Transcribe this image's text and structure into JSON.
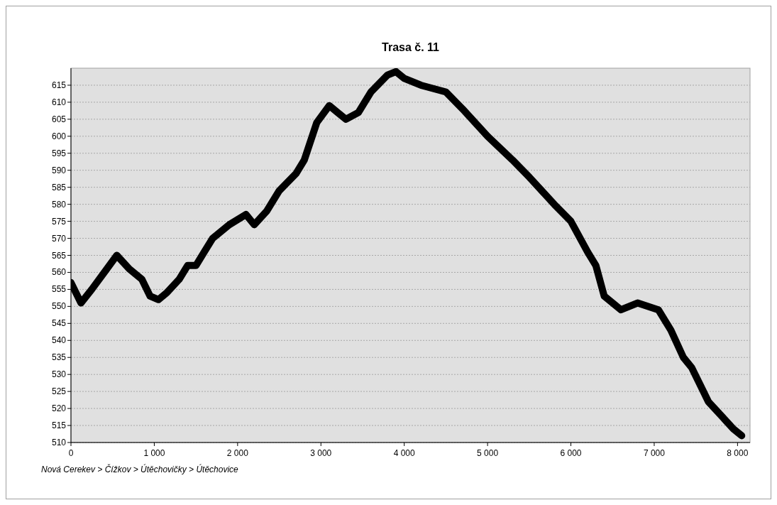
{
  "chart_data": {
    "type": "line",
    "title": "Trasa č. 11",
    "x": [
      0,
      120,
      250,
      400,
      550,
      700,
      850,
      950,
      1050,
      1150,
      1300,
      1400,
      1500,
      1600,
      1700,
      1900,
      2100,
      2200,
      2350,
      2500,
      2700,
      2800,
      2950,
      3100,
      3200,
      3300,
      3450,
      3600,
      3800,
      3900,
      4000,
      4200,
      4500,
      4700,
      5000,
      5300,
      5500,
      5800,
      6000,
      6200,
      6300,
      6400,
      6600,
      6800,
      7050,
      7200,
      7350,
      7450,
      7550,
      7650,
      7800,
      7950,
      8050
    ],
    "series": [
      {
        "color": "#000000",
        "values": [
          557,
          551,
          555,
          560,
          565,
          561,
          558,
          553,
          552,
          554,
          558,
          562,
          562,
          566,
          570,
          574,
          577,
          574,
          578,
          584,
          589,
          593,
          604,
          609,
          607,
          605,
          607,
          613,
          618,
          619,
          617,
          615,
          613,
          608,
          600,
          593,
          588,
          580,
          575,
          566,
          562,
          553,
          549,
          551,
          549,
          543,
          535,
          532,
          527,
          522,
          518,
          514,
          512
        ]
      }
    ],
    "xlim": [
      0,
      8150
    ],
    "xticks": [
      0,
      {
        "value": 1000,
        "label": "1 000"
      },
      {
        "value": 2000,
        "label": "2 000"
      },
      {
        "value": 3000,
        "label": "3 000"
      },
      {
        "value": 4000,
        "label": "4 000"
      },
      {
        "value": 5000,
        "label": "5 000"
      },
      {
        "value": 6000,
        "label": "6 000"
      },
      {
        "value": 7000,
        "label": "7 000"
      },
      {
        "value": 8000,
        "label": "8 000"
      }
    ],
    "ylim": [
      510,
      620
    ],
    "yticks": [
      510,
      515,
      520,
      525,
      530,
      535,
      540,
      545,
      550,
      555,
      560,
      565,
      570,
      575,
      580,
      585,
      590,
      595,
      600,
      605,
      610,
      615
    ],
    "grid": "y",
    "line_style": "solid",
    "annotations": [
      "Nová Cerekev > Čížkov > Útěchovičky > Útěchovice"
    ]
  }
}
